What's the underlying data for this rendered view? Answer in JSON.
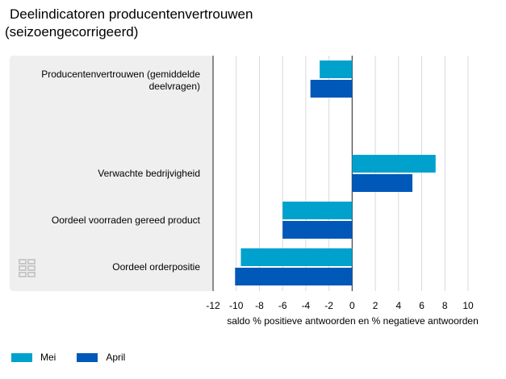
{
  "title_line1": "Deelindicatoren producentenvertrouwen",
  "title_line2": "(seizoengecorrigeerd)",
  "chart_data": {
    "type": "bar",
    "orientation": "horizontal",
    "categories": [
      [
        "Producentenvertrouwen (gemiddelde",
        "deelvragen)"
      ],
      [
        "Verwachte bedrijvigheid"
      ],
      [
        "Oordeel voorraden gereed product"
      ],
      [
        "Oordeel orderpositie"
      ]
    ],
    "series": [
      {
        "name": "Mei",
        "color": "#00a1cd",
        "values": [
          -2.8,
          7.2,
          -6.0,
          -9.6
        ]
      },
      {
        "name": "April",
        "color": "#0058b8",
        "values": [
          -3.6,
          5.2,
          -6.0,
          -10.1
        ]
      }
    ],
    "xlim": [
      -12,
      10
    ],
    "xticks": [
      -12,
      -10,
      -8,
      -6,
      -4,
      -2,
      0,
      2,
      4,
      6,
      8,
      10
    ],
    "xlabel": "saldo % positieve antwoorden en % negatieve antwoorden",
    "grid": true,
    "legend_position": "bottom-left"
  },
  "logo": {
    "name": "cbs-logo",
    "color": "#c8c8c8"
  }
}
